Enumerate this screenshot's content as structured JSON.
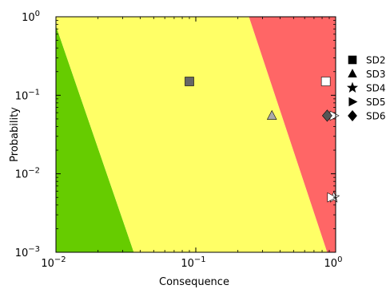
{
  "chart_data": {
    "type": "scatter",
    "title": "",
    "xlabel": "Consequence",
    "ylabel": "Probability",
    "xscale": "log",
    "yscale": "log",
    "xlim": [
      0.01,
      1
    ],
    "ylim": [
      0.001,
      1
    ],
    "xticks": [
      {
        "value": 0.01,
        "base": "10",
        "exp": "−2"
      },
      {
        "value": 0.1,
        "base": "10",
        "exp": "−1"
      },
      {
        "value": 1,
        "base": "10",
        "exp": "0"
      }
    ],
    "yticks": [
      {
        "value": 0.001,
        "base": "10",
        "exp": "−3"
      },
      {
        "value": 0.01,
        "base": "10",
        "exp": "−2"
      },
      {
        "value": 0.1,
        "base": "10",
        "exp": "−1"
      },
      {
        "value": 1,
        "base": "10",
        "exp": "0"
      }
    ],
    "regions": [
      {
        "color": "#66cc00",
        "polygon": [
          [
            0.01,
            0.001
          ],
          [
            0.036,
            0.001
          ],
          [
            0.0095,
            1
          ],
          [
            0.01,
            1
          ]
        ]
      },
      {
        "color": "#ffff66",
        "polygon": [
          [
            0.036,
            0.001
          ],
          [
            0.87,
            0.001
          ],
          [
            0.24,
            1
          ],
          [
            0.0095,
            1
          ]
        ]
      },
      {
        "color": "#ff6666",
        "polygon": [
          [
            0.87,
            0.001
          ],
          [
            1,
            0.001
          ],
          [
            1,
            1
          ],
          [
            0.24,
            1
          ]
        ]
      }
    ],
    "series": [
      {
        "name": "SD2",
        "marker": "square",
        "points": [
          {
            "x": 0.09,
            "y": 0.15,
            "fill": "#666666"
          },
          {
            "x": 0.85,
            "y": 0.15,
            "fill": "#ffffff"
          }
        ]
      },
      {
        "name": "SD3",
        "marker": "triangle",
        "points": [
          {
            "x": 0.35,
            "y": 0.055,
            "fill": "#aaaaaa"
          }
        ]
      },
      {
        "name": "SD4",
        "marker": "star",
        "points": [
          {
            "x": 0.97,
            "y": 0.005,
            "fill": "#ffffff"
          }
        ]
      },
      {
        "name": "SD5",
        "marker": "triangle-right",
        "points": [
          {
            "x": 0.97,
            "y": 0.055,
            "fill": "#ffffff"
          },
          {
            "x": 0.93,
            "y": 0.005,
            "fill": "#ffffff"
          }
        ]
      },
      {
        "name": "SD6",
        "marker": "diamond",
        "points": [
          {
            "x": 0.87,
            "y": 0.055,
            "fill": "#555555"
          }
        ]
      }
    ],
    "legend": {
      "placement": "outside-right"
    }
  }
}
